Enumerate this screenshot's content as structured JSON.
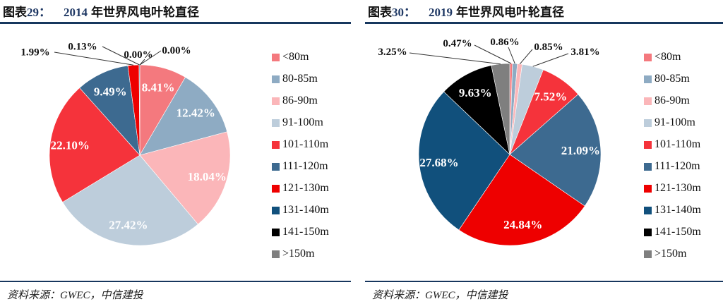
{
  "figures": [
    {
      "header": {
        "prefix": "图表",
        "number": "29：",
        "year": "2014",
        "title_rest": "年世界风电叶轮直径"
      },
      "source": "资料来源：GWEC，中信建投"
    },
    {
      "header": {
        "prefix": "图表",
        "number": "30：",
        "year": "2019",
        "title_rest": "年世界风电叶轮直径"
      },
      "source": "资料来源：GWEC，中信建投"
    }
  ],
  "chart_data": [
    {
      "type": "pie",
      "title": "2014 年世界风电叶轮直径",
      "categories": [
        "<80m",
        "80-85m",
        "86-90m",
        "91-100m",
        "101-110m",
        "111-120m",
        "121-130m",
        "131-140m",
        "141-150m",
        ">150m"
      ],
      "values": [
        8.41,
        12.42,
        18.04,
        27.42,
        22.1,
        9.49,
        1.99,
        0.13,
        0.0,
        0.0
      ],
      "data_labels": [
        "8.41%",
        "12.42%",
        "18.04%",
        "27.42%",
        "22.10%",
        "9.49%",
        "1.99%",
        "0.13%",
        "0.00%",
        "0.00%"
      ],
      "colors": [
        "#F4797E",
        "#8EABC3",
        "#FBB6B9",
        "#BDCDDB",
        "#F5333B",
        "#3D6A90",
        "#EE0000",
        "#11507C",
        "#000000",
        "#7F7F7F"
      ],
      "start_angle_deg": 0,
      "direction": "clockwise",
      "legend_position": "right"
    },
    {
      "type": "pie",
      "title": "2019 年世界风电叶轮直径",
      "categories": [
        "<80m",
        "80-85m",
        "86-90m",
        "91-100m",
        "101-110m",
        "111-120m",
        "121-130m",
        "131-140m",
        "141-150m",
        ">150m"
      ],
      "values": [
        0.47,
        0.86,
        0.85,
        3.81,
        7.52,
        21.09,
        24.84,
        27.68,
        9.63,
        3.25
      ],
      "data_labels": [
        "0.47%",
        "0.86%",
        "0.85%",
        "3.81%",
        "7.52%",
        "21.09%",
        "24.84%",
        "27.68%",
        "9.63%",
        "3.25%"
      ],
      "colors": [
        "#F4797E",
        "#8EABC3",
        "#FBB6B9",
        "#BDCDDB",
        "#F5333B",
        "#3D6A90",
        "#EE0000",
        "#11507C",
        "#000000",
        "#7F7F7F"
      ],
      "start_angle_deg": 0,
      "direction": "clockwise",
      "legend_position": "right"
    }
  ]
}
